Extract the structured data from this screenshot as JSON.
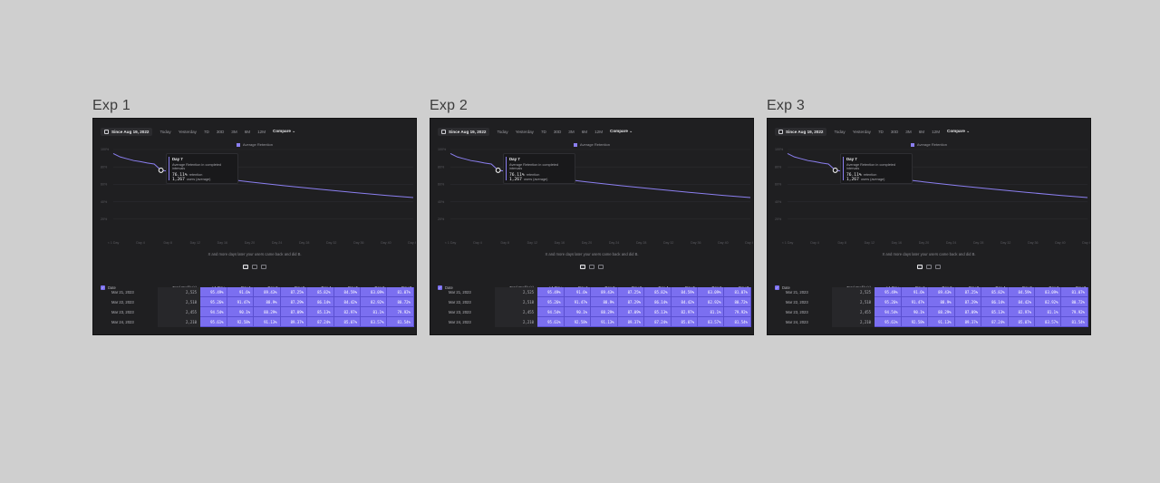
{
  "frames": [
    {
      "title": "Exp 1"
    },
    {
      "title": "Exp 2"
    },
    {
      "title": "Exp 3"
    }
  ],
  "toolbar": {
    "date_label": "Since Aug 19, 2022",
    "ranges": [
      "Today",
      "Yesterday",
      "7D",
      "30D",
      "3M",
      "6M",
      "12M"
    ],
    "compare_label": "Compare",
    "compare_icon": "chevron-down-icon"
  },
  "legend": {
    "label": "Average Retention",
    "color": "#8b7ff0"
  },
  "tooltip": {
    "title": "Day 7",
    "description": "Average Retention in completed intervals",
    "retention_value": "76.11%",
    "retention_label": "retention",
    "users_value": "1,267",
    "users_label": "users (average)"
  },
  "footnote": "X and more days later your users came back and did B.",
  "chart_data": {
    "type": "line",
    "y_ticks": [
      "100%",
      "80%",
      "60%",
      "40%",
      "20%"
    ],
    "x_ticks": [
      "< 1 Day",
      "Day 4",
      "Day 8",
      "Day 12",
      "Day 16",
      "Day 20",
      "Day 24",
      "Day 28",
      "Day 32",
      "Day 36",
      "Day 40",
      "Day 44"
    ],
    "series": [
      {
        "name": "Average Retention",
        "x": [
          0,
          1,
          2,
          3,
          4,
          5,
          6,
          7,
          10,
          15,
          20,
          25,
          30,
          35,
          40,
          44
        ],
        "y": [
          95.4,
          91.5,
          89.4,
          87.3,
          86.1,
          84.5,
          83.3,
          76.11,
          73,
          67.5,
          62.8,
          58.5,
          54.5,
          50.8,
          47.3,
          44.8
        ]
      }
    ],
    "highlight_point": {
      "x": 7,
      "y": 76.11
    },
    "ylim": [
      0,
      100
    ],
    "color": "#8b7ff0"
  },
  "table": {
    "columns": [
      "Date",
      "Total Profile(s)",
      "< 1 Day",
      "Day 1",
      "Day 2",
      "Day 3",
      "Day 4",
      "Day 5",
      "Day 6",
      "Day 7"
    ],
    "rows": [
      {
        "date": "Mar 21, 2023",
        "total": "2,525",
        "cells": [
          "95.49%",
          "91.6%",
          "89.43%",
          "87.25%",
          "85.82%",
          "84.59%",
          "83.09%",
          "81.07%"
        ]
      },
      {
        "date": "Mar 22, 2023",
        "total": "2,518",
        "cells": [
          "95.26%",
          "91.47%",
          "88.9%",
          "87.29%",
          "86.14%",
          "84.42%",
          "82.92%",
          "80.72%"
        ]
      },
      {
        "date": "Mar 23, 2023",
        "total": "2,455",
        "cells": [
          "94.54%",
          "90.1%",
          "88.29%",
          "87.09%",
          "85.13%",
          "82.97%",
          "81.1%",
          "79.92%"
        ]
      },
      {
        "date": "Mar 24, 2023",
        "total": "2,210",
        "cells": [
          "95.61%",
          "92.58%",
          "91.13%",
          "89.37%",
          "87.24%",
          "85.07%",
          "83.57%",
          "81.54%"
        ]
      }
    ]
  }
}
